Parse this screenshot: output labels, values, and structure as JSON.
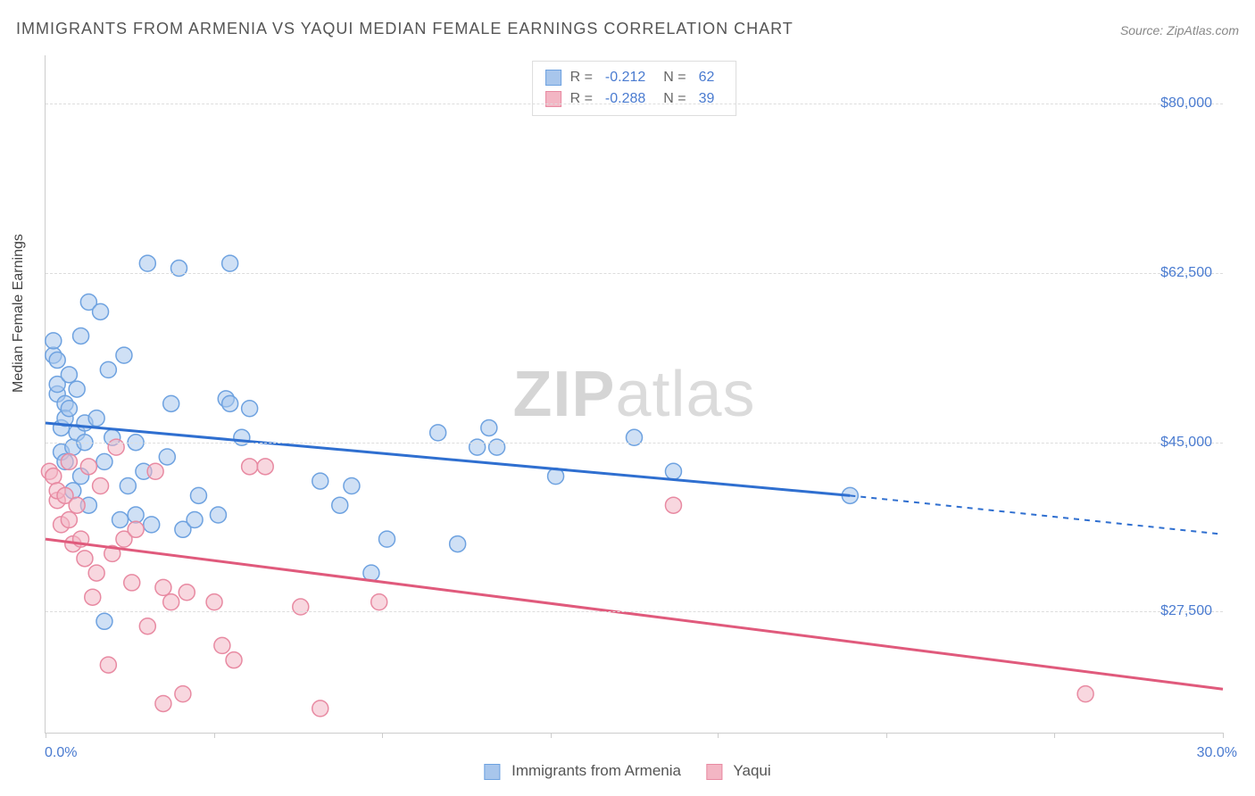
{
  "title": "IMMIGRANTS FROM ARMENIA VS YAQUI MEDIAN FEMALE EARNINGS CORRELATION CHART",
  "source": "Source: ZipAtlas.com",
  "ylabel": "Median Female Earnings",
  "watermark": {
    "a": "ZIP",
    "b": "atlas"
  },
  "chart": {
    "type": "scatter-correlation",
    "xlim": [
      0,
      30
    ],
    "ylim": [
      15000,
      85000
    ],
    "xtick_labels": {
      "left": "0.0%",
      "right": "30.0%"
    },
    "ytick_values": [
      27500,
      45000,
      62500,
      80000
    ],
    "ytick_labels": [
      "$27,500",
      "$45,000",
      "$62,500",
      "$80,000"
    ],
    "vtick_positions_pct": [
      0,
      14.3,
      28.6,
      42.9,
      57.1,
      71.4,
      85.7,
      100
    ],
    "background_color": "#ffffff",
    "grid_color": "#dddddd",
    "axis_color": "#cccccc",
    "marker_radius": 9,
    "marker_stroke_width": 1.5,
    "trend_line_width": 3,
    "series": [
      {
        "key": "armenia",
        "label": "Immigrants from Armenia",
        "fill": "#a8c6ec",
        "stroke": "#6ea2e0",
        "line_color": "#2f6fd0",
        "fill_opacity": 0.55,
        "R": "-0.212",
        "N": "62",
        "trend": {
          "x1": 0,
          "y1": 47000,
          "x2": 20.5,
          "y2": 39500,
          "dash_x2": 30,
          "dash_y2": 35500
        },
        "points": [
          [
            0.2,
            54000
          ],
          [
            0.2,
            55500
          ],
          [
            0.3,
            50000
          ],
          [
            0.3,
            51000
          ],
          [
            0.3,
            53500
          ],
          [
            0.4,
            44000
          ],
          [
            0.4,
            46500
          ],
          [
            0.5,
            49000
          ],
          [
            0.5,
            47500
          ],
          [
            0.5,
            43000
          ],
          [
            0.6,
            48500
          ],
          [
            0.6,
            52000
          ],
          [
            0.7,
            44500
          ],
          [
            0.7,
            40000
          ],
          [
            0.8,
            46000
          ],
          [
            0.8,
            50500
          ],
          [
            0.9,
            41500
          ],
          [
            0.9,
            56000
          ],
          [
            1.0,
            45000
          ],
          [
            1.0,
            47000
          ],
          [
            1.1,
            38500
          ],
          [
            1.1,
            59500
          ],
          [
            1.3,
            47500
          ],
          [
            1.4,
            58500
          ],
          [
            1.5,
            43000
          ],
          [
            1.5,
            26500
          ],
          [
            1.6,
            52500
          ],
          [
            1.7,
            45500
          ],
          [
            1.9,
            37000
          ],
          [
            2.0,
            54000
          ],
          [
            2.1,
            40500
          ],
          [
            2.3,
            37500
          ],
          [
            2.3,
            45000
          ],
          [
            2.5,
            42000
          ],
          [
            2.6,
            63500
          ],
          [
            2.7,
            36500
          ],
          [
            3.1,
            43500
          ],
          [
            3.2,
            49000
          ],
          [
            3.4,
            63000
          ],
          [
            3.5,
            36000
          ],
          [
            3.8,
            37000
          ],
          [
            3.9,
            39500
          ],
          [
            4.4,
            37500
          ],
          [
            4.6,
            49500
          ],
          [
            4.7,
            49000
          ],
          [
            4.7,
            63500
          ],
          [
            5.0,
            45500
          ],
          [
            5.2,
            48500
          ],
          [
            7.0,
            41000
          ],
          [
            7.5,
            38500
          ],
          [
            7.8,
            40500
          ],
          [
            8.3,
            31500
          ],
          [
            8.7,
            35000
          ],
          [
            10.0,
            46000
          ],
          [
            10.5,
            34500
          ],
          [
            11.0,
            44500
          ],
          [
            11.3,
            46500
          ],
          [
            11.5,
            44500
          ],
          [
            13.0,
            41500
          ],
          [
            15.0,
            45500
          ],
          [
            16.0,
            42000
          ],
          [
            20.5,
            39500
          ]
        ]
      },
      {
        "key": "yaqui",
        "label": "Yaqui",
        "fill": "#f3b6c4",
        "stroke": "#e88aa2",
        "line_color": "#e05a7c",
        "fill_opacity": 0.55,
        "R": "-0.288",
        "N": "39",
        "trend": {
          "x1": 0,
          "y1": 35000,
          "x2": 30,
          "y2": 19500
        },
        "points": [
          [
            0.1,
            42000
          ],
          [
            0.2,
            41500
          ],
          [
            0.3,
            39000
          ],
          [
            0.3,
            40000
          ],
          [
            0.4,
            36500
          ],
          [
            0.5,
            39500
          ],
          [
            0.6,
            37000
          ],
          [
            0.6,
            43000
          ],
          [
            0.7,
            34500
          ],
          [
            0.8,
            38500
          ],
          [
            0.9,
            35000
          ],
          [
            1.0,
            33000
          ],
          [
            1.1,
            42500
          ],
          [
            1.2,
            29000
          ],
          [
            1.3,
            31500
          ],
          [
            1.4,
            40500
          ],
          [
            1.6,
            22000
          ],
          [
            1.7,
            33500
          ],
          [
            1.8,
            44500
          ],
          [
            2.0,
            35000
          ],
          [
            2.2,
            30500
          ],
          [
            2.3,
            36000
          ],
          [
            2.6,
            26000
          ],
          [
            2.8,
            42000
          ],
          [
            3.0,
            30000
          ],
          [
            3.0,
            18000
          ],
          [
            3.2,
            28500
          ],
          [
            3.5,
            19000
          ],
          [
            3.6,
            29500
          ],
          [
            4.3,
            28500
          ],
          [
            4.5,
            24000
          ],
          [
            4.8,
            22500
          ],
          [
            5.2,
            42500
          ],
          [
            5.6,
            42500
          ],
          [
            6.5,
            28000
          ],
          [
            7.0,
            17500
          ],
          [
            8.5,
            28500
          ],
          [
            16.0,
            38500
          ],
          [
            26.5,
            19000
          ]
        ]
      }
    ]
  },
  "legend_bottom": [
    {
      "label": "Immigrants from Armenia",
      "fill": "#a8c6ec",
      "stroke": "#6ea2e0"
    },
    {
      "label": "Yaqui",
      "fill": "#f3b6c4",
      "stroke": "#e88aa2"
    }
  ]
}
